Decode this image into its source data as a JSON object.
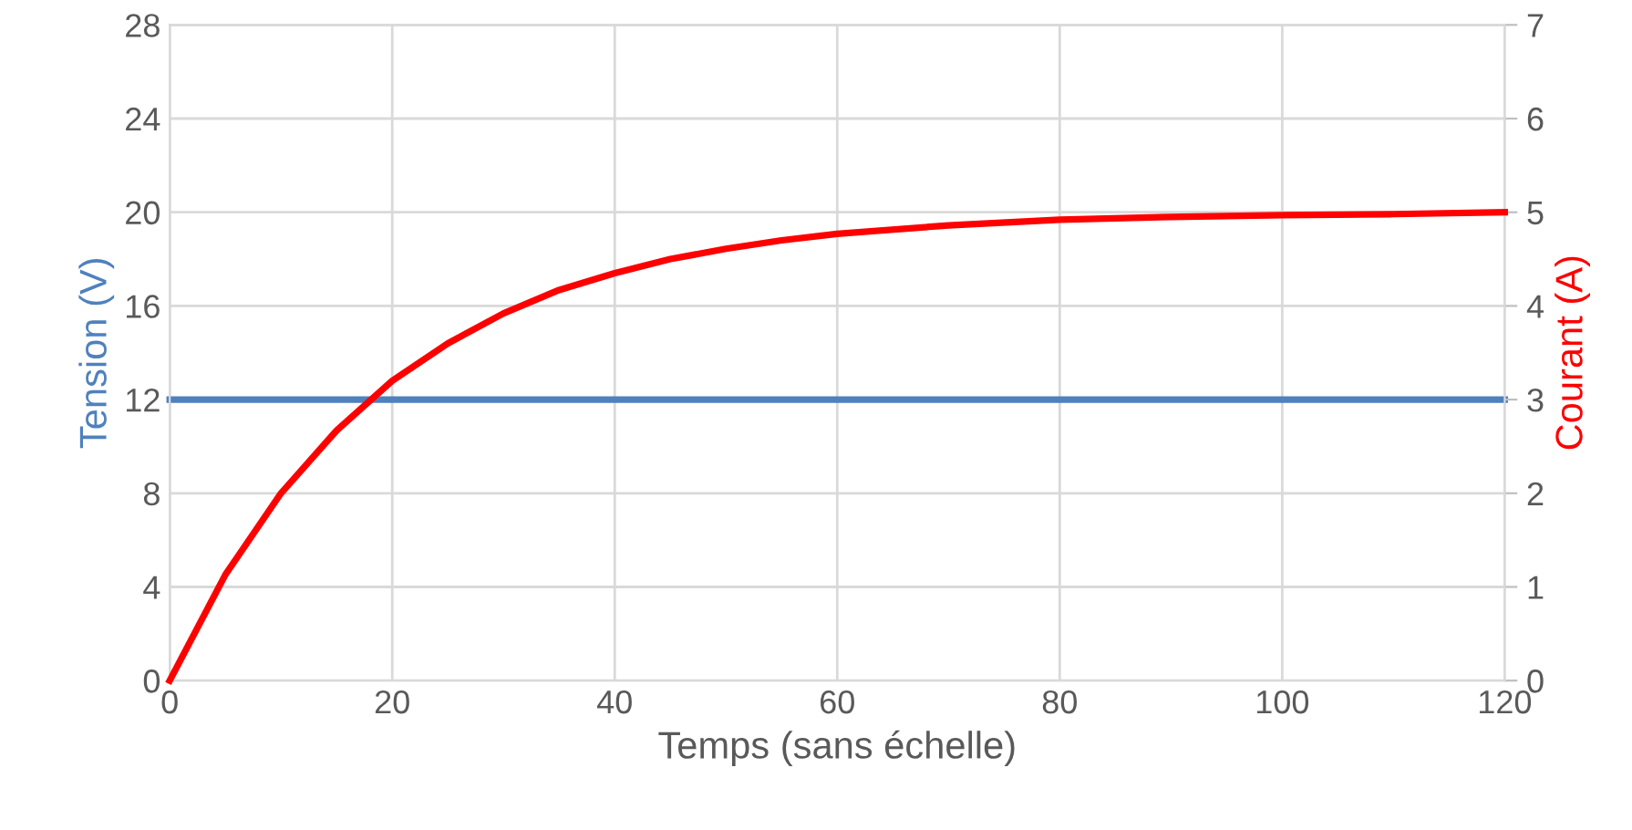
{
  "chart_data": {
    "type": "line",
    "xlabel": "Temps (sans échelle)",
    "ylabel": "Tension (V)",
    "y2label": "Courant (A)",
    "xlim": [
      0,
      120
    ],
    "xticks": [
      0,
      20,
      40,
      60,
      80,
      100,
      120
    ],
    "ylim": [
      0,
      28
    ],
    "yticks": [
      0,
      4,
      8,
      12,
      16,
      20,
      24,
      28
    ],
    "y2lim": [
      0,
      7
    ],
    "y2ticks": [
      0,
      1,
      2,
      3,
      4,
      5,
      6,
      7
    ],
    "grid": true,
    "marker": "none",
    "line_style": "solid",
    "series": [
      {
        "color": "#4f81bd",
        "x": [
          0,
          120
        ],
        "values": [
          12,
          12
        ]
      },
      {
        "color": "#ff0000",
        "axis": "y2",
        "x": [
          0,
          5,
          10,
          15,
          20,
          25,
          30,
          35,
          40,
          45,
          50,
          55,
          60,
          70,
          80,
          90,
          100,
          110,
          120
        ],
        "values": [
          0,
          1.13,
          2.0,
          2.67,
          3.2,
          3.6,
          3.92,
          4.17,
          4.35,
          4.5,
          4.61,
          4.7,
          4.77,
          4.86,
          4.92,
          4.95,
          4.97,
          4.98,
          5.0
        ]
      }
    ]
  }
}
